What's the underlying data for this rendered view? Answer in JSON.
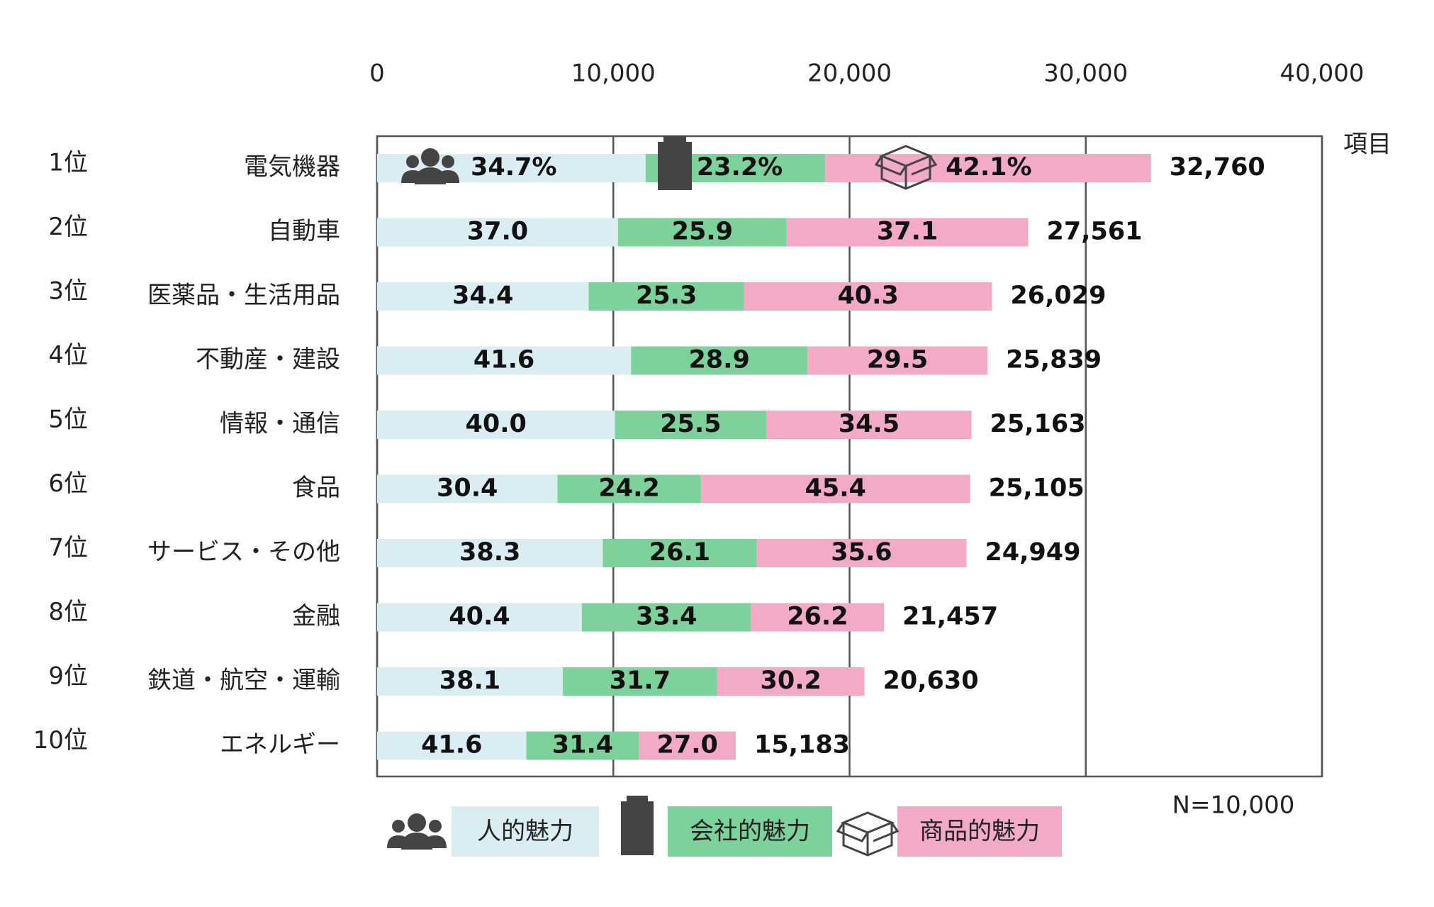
{
  "chart_data": {
    "type": "stacked-bar-percent",
    "categories": [
      "電気機器",
      "自動車",
      "医薬品・生活用品",
      "不動産・建設",
      "情報・通信",
      "食品",
      "サービス・その他",
      "金融",
      "鉄道・航空・運輸",
      "エネルギー"
    ],
    "ranks": [
      "1位",
      "2位",
      "3位",
      "4位",
      "5位",
      "6位",
      "7位",
      "8位",
      "9位",
      "10位"
    ],
    "totals": [
      32760,
      27561,
      26029,
      25839,
      25163,
      25105,
      24949,
      21457,
      20630,
      15183
    ],
    "total_labels": [
      "32,760",
      "27,561",
      "26,029",
      "25,839",
      "25,163",
      "25,105",
      "24,949",
      "21,457",
      "20,630",
      "15,183"
    ],
    "series": [
      {
        "name": "人的魅力",
        "color": "#daedf3",
        "values": [
          34.7,
          37.0,
          34.4,
          41.6,
          40.0,
          30.4,
          38.3,
          40.4,
          38.1,
          41.6
        ],
        "value_labels": [
          "34.7%",
          "37.0",
          "34.4",
          "41.6",
          "40.0",
          "30.4",
          "38.3",
          "40.4",
          "38.1",
          "41.6"
        ]
      },
      {
        "name": "会社的魅力",
        "color": "#7dd29c",
        "values": [
          23.2,
          25.9,
          25.3,
          28.9,
          25.5,
          24.2,
          26.1,
          33.4,
          31.7,
          31.4
        ],
        "value_labels": [
          "23.2%",
          "25.9",
          "25.3",
          "28.9",
          "25.5",
          "24.2",
          "26.1",
          "33.4",
          "31.7",
          "31.4"
        ]
      },
      {
        "name": "商品的魅力",
        "color": "#f2aac7",
        "values": [
          42.1,
          37.1,
          40.3,
          29.5,
          34.5,
          45.4,
          35.6,
          26.2,
          30.2,
          27.0
        ],
        "value_labels": [
          "42.1%",
          "37.1",
          "40.3",
          "29.5",
          "34.5",
          "45.4",
          "35.6",
          "26.2",
          "30.2",
          "27.0"
        ]
      }
    ],
    "xlim": [
      0,
      40000
    ],
    "xticks": [
      0,
      {
        "value": 10000,
        "label": "10,000"
      },
      {
        "value": 20000,
        "label": "20,000"
      },
      {
        "value": 30000,
        "label": "30,000"
      },
      {
        "value": 40000,
        "label": "40,000"
      }
    ],
    "grid": true,
    "axis_label": "項目",
    "note": "N=10,000"
  }
}
